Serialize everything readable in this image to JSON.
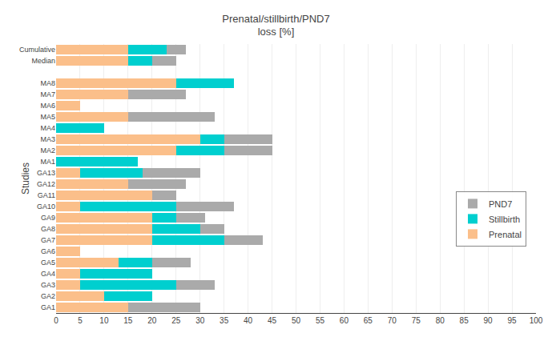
{
  "chart_data": {
    "type": "bar",
    "orientation": "horizontal",
    "stacked": true,
    "title": "Prenatal/stillbirth/PND7\nloss [%]",
    "ylabel": "Studies",
    "categories": [
      "Cumulative",
      "Median",
      null,
      "MA8",
      "MA7",
      "MA6",
      "MA5",
      "MA4",
      "MA3",
      "MA2",
      "MA1",
      "GA13",
      "GA12",
      "GA11",
      "GA10",
      "GA9",
      "GA8",
      "GA7",
      "GA6",
      "GA5",
      "GA4",
      "GA3",
      "GA2",
      "GA1"
    ],
    "series": [
      {
        "name": "Prenatal",
        "color": "#FBBF8A",
        "values": [
          15,
          15,
          0,
          25,
          15,
          5,
          15,
          0,
          30,
          25,
          0,
          5,
          15,
          20,
          5,
          20,
          20,
          20,
          5,
          13,
          5,
          5,
          10,
          15
        ]
      },
      {
        "name": "Stillbirth",
        "color": "#00CFCF",
        "values": [
          8,
          5,
          0,
          12,
          0,
          0,
          0,
          10,
          5,
          10,
          17,
          13,
          0,
          0,
          20,
          5,
          10,
          15,
          0,
          7,
          15,
          20,
          10,
          0
        ]
      },
      {
        "name": "PND7",
        "color": "#AAAAAA",
        "values": [
          4,
          5,
          0,
          0,
          12,
          0,
          18,
          0,
          10,
          10,
          0,
          12,
          12,
          5,
          12,
          6,
          5,
          8,
          0,
          8,
          0,
          8,
          0,
          15
        ]
      }
    ],
    "xlim": [
      0,
      100
    ],
    "xticks": [
      0,
      5,
      10,
      15,
      20,
      25,
      30,
      35,
      40,
      45,
      50,
      55,
      60,
      65,
      70,
      75,
      80,
      85,
      90,
      95,
      100
    ],
    "grid": true,
    "legend": "right"
  }
}
